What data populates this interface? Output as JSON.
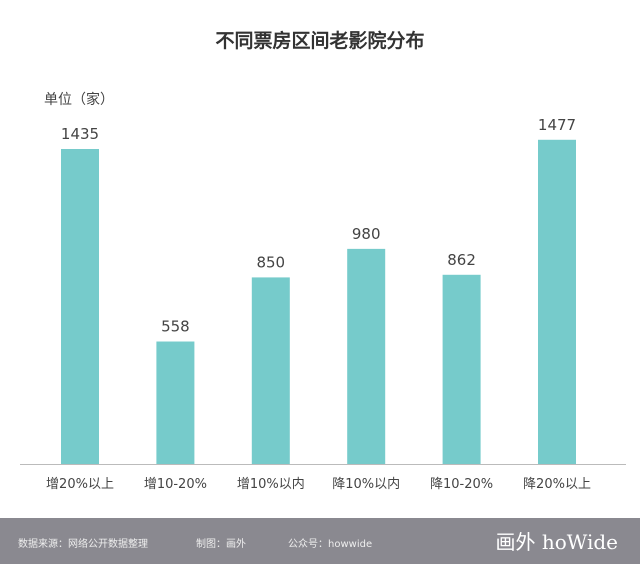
{
  "chart_data": {
    "type": "bar",
    "title": "不同票房区间老影院分布",
    "ylabel": "单位（家）",
    "categories": [
      "增20%以上",
      "增10-20%",
      "增10%以内",
      "降10%以内",
      "降10-20%",
      "降20%以上"
    ],
    "values": [
      1435,
      558,
      850,
      980,
      862,
      1477
    ],
    "ylim": [
      0,
      1500
    ],
    "grid": false,
    "bar_color": "#76cbcb"
  },
  "footer": {
    "source": "数据来源：网络公开数据整理",
    "maker": "制图：画外",
    "account": "公众号：howwide",
    "logo": "画外 hoWide"
  }
}
